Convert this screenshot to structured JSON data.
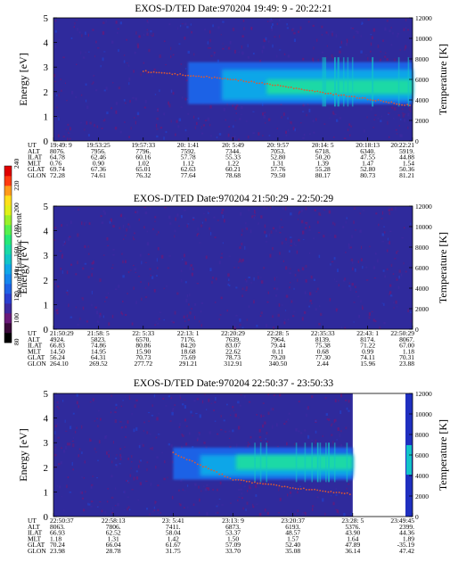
{
  "figure": {
    "colorbar": {
      "label": "Second Harmonic Current",
      "ticks": [
        "240",
        "220",
        "200",
        "180",
        "160",
        "140",
        "120",
        "100",
        "80"
      ],
      "colors": [
        "#000000",
        "#3a0a3a",
        "#6a1a7a",
        "#3d2aa0",
        "#2b3ecf",
        "#1f62e6",
        "#1686ee",
        "#10a6e8",
        "#12c4c8",
        "#1ad9a6",
        "#26e878",
        "#56f04e",
        "#9af02a",
        "#e0f018",
        "#ffe01a",
        "#ff9a1a",
        "#ff3a10",
        "#e00000"
      ]
    },
    "left_tick_labels": [
      "5",
      "4",
      "3",
      "2",
      "1",
      "0"
    ],
    "right_tick_labels": [
      "12000",
      "10000",
      "8000",
      "6000",
      "4000",
      "2000",
      "0"
    ],
    "ylabel_left": "Energy [eV]",
    "ylabel_right": "Temperature [K]",
    "row_labels": [
      "UT",
      "ALT",
      "ILAT",
      "MLT",
      "GLAT",
      "GLON"
    ],
    "panels": [
      {
        "title": "EXOS-D/TED   Date:970204  19:49: 9 - 20:22:21",
        "ut": [
          "19:49: 9",
          "19:53:25",
          "19:57:33",
          "20: 1:41",
          "20: 5:49",
          "20: 9:57",
          "20:14: 5",
          "20:18:13",
          "20:22:21"
        ],
        "alt": [
          "8076.",
          "7956.",
          "7796.",
          "7592.",
          "7344.",
          "7053.",
          "6718.",
          "6340.",
          "5919."
        ],
        "ilat": [
          "64.78",
          "62.46",
          "60.16",
          "57.78",
          "55.33",
          "52.80",
          "50.20",
          "47.55",
          "44.88"
        ],
        "mlt": [
          "0.76",
          "0.90",
          "1.02",
          "1.12",
          "1.22",
          "1.31",
          "1.39",
          "1.47",
          "1.54"
        ],
        "glat": [
          "69.74",
          "67.36",
          "65.01",
          "62.63",
          "60.21",
          "57.76",
          "55.28",
          "52.80",
          "50.36"
        ],
        "glon": [
          "72.28",
          "74.61",
          "76.32",
          "77.64",
          "78.68",
          "79.50",
          "80.17",
          "80.73",
          "81.21"
        ]
      },
      {
        "title": "EXOS-D/TED   Date:970204  21:50:29 - 22:50:29",
        "ut": [
          "21:50:29",
          "21:58: 5",
          "22: 5:33",
          "22:13: 1",
          "22:20:29",
          "22:28: 5",
          "22:35:33",
          "22:43: 1",
          "22:50:29"
        ],
        "alt": [
          "4924.",
          "5823.",
          "6570.",
          "7176.",
          "7639.",
          "7964.",
          "8139.",
          "8174.",
          "8067."
        ],
        "ilat": [
          "66.83",
          "74.86",
          "80.86",
          "84.20",
          "83.07",
          "79.44",
          "75.38",
          "71.22",
          "67.00"
        ],
        "mlt": [
          "14.50",
          "14.95",
          "15.90",
          "18.68",
          "22.62",
          "0.11",
          "0.68",
          "0.99",
          "1.18"
        ],
        "glat": [
          "56.24",
          "64.31",
          "70.73",
          "75.69",
          "78.73",
          "79.20",
          "77.30",
          "74.11",
          "70.31"
        ],
        "glon": [
          "264.10",
          "269.52",
          "277.72",
          "291.21",
          "312.91",
          "340.50",
          "2.44",
          "15.96",
          "23.88"
        ]
      },
      {
        "title": "EXOS-D/TED   Date:970204  22:50:37 - 23:50:33",
        "ut": [
          "22:50:37",
          "22:58:13",
          "23: 5:41",
          "23:13: 9",
          "23:20:37",
          "23:28: 5",
          "23:49:45"
        ],
        "alt": [
          "8063.",
          "7806.",
          "7411.",
          "6873.",
          "6193.",
          "5376.",
          "2399."
        ],
        "ilat": [
          "66.93",
          "62.52",
          "58.04",
          "53.37",
          "48.57",
          "43.90",
          "44.36"
        ],
        "mlt": [
          "1.18",
          "1.31",
          "1.42",
          "1.50",
          "1.57",
          "1.64",
          "1.89"
        ],
        "glat": [
          "70.24",
          "66.04",
          "61.67",
          "57.09",
          "52.40",
          "47.89",
          "-35.19"
        ],
        "glon": [
          "23.98",
          "28.78",
          "31.75",
          "33.70",
          "35.08",
          "36.14",
          "47.42"
        ]
      }
    ]
  },
  "chart_data": [
    {
      "type": "heatmap",
      "title": "EXOS-D/TED   Date:970204  19:49: 9 - 20:22:21",
      "xlabel": "",
      "ylabel": "Energy [eV]",
      "ylabel_right": "Temperature [K]",
      "ylim": [
        0,
        5
      ],
      "ylim_right": [
        0,
        12000
      ],
      "x": [
        "19:49: 9",
        "19:53:25",
        "19:57:33",
        "20: 1:41",
        "20: 5:49",
        "20: 9:57",
        "20:14: 5",
        "20:18:13",
        "20:22:21"
      ],
      "color_scale": [
        80,
        240
      ],
      "band": {
        "x_start": "20: 1:41",
        "x_end": "20:22:21",
        "energy_low_eV": 1.5,
        "energy_high_eV": 3.2,
        "peak_energy_eV": 2.2
      },
      "temperature_trace": {
        "x": [
          "19:57:33",
          "20: 5:49",
          "20: 9:57",
          "20:14: 5",
          "20:18:13",
          "20:22:21"
        ],
        "y": [
          6800,
          6000,
          5400,
          4700,
          4100,
          3400
        ]
      }
    },
    {
      "type": "heatmap",
      "title": "EXOS-D/TED   Date:970204  21:50:29 - 22:50:29",
      "xlabel": "",
      "ylabel": "Energy [eV]",
      "ylabel_right": "Temperature [K]",
      "ylim": [
        0,
        5
      ],
      "ylim_right": [
        0,
        12000
      ],
      "x": [
        "21:50:29",
        "21:58: 5",
        "22: 5:33",
        "22:13: 1",
        "22:20:29",
        "22:28: 5",
        "22:35:33",
        "22:43: 1",
        "22:50:29"
      ],
      "color_scale": [
        80,
        240
      ],
      "band": null,
      "temperature_trace": null
    },
    {
      "type": "heatmap",
      "title": "EXOS-D/TED   Date:970204  22:50:37 - 23:50:33",
      "xlabel": "",
      "ylabel": "Energy [eV]",
      "ylabel_right": "Temperature [K]",
      "ylim": [
        0,
        5
      ],
      "ylim_right": [
        0,
        12000
      ],
      "x": [
        "22:50:37",
        "22:58:13",
        "23: 5:41",
        "23:13: 9",
        "23:20:37",
        "23:28: 5",
        "23:49:45"
      ],
      "color_scale": [
        80,
        240
      ],
      "band": {
        "x_start": "23: 5:41",
        "x_end": "23:28: 5",
        "energy_low_eV": 1.5,
        "energy_high_eV": 2.8,
        "peak_energy_eV": 2.2
      },
      "temperature_trace": {
        "x": [
          "23: 5:41",
          "23:13: 9",
          "23:20:37",
          "23:28: 5"
        ],
        "y": [
          6200,
          3600,
          2800,
          2200
        ]
      }
    }
  ]
}
